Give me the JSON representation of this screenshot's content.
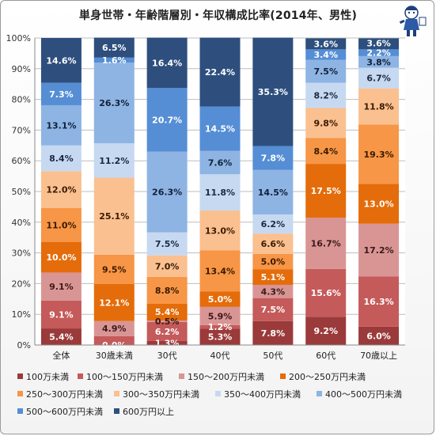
{
  "chart_data": {
    "type": "bar",
    "stacked": "percent",
    "title": "単身世帯・年齢階層別・年収構成比率(2014年、男性)",
    "categories": [
      "全体",
      "30歳未満",
      "30代",
      "40代",
      "50代",
      "60代",
      "70歳以上"
    ],
    "ylim": [
      0,
      100
    ],
    "yticks": [
      "0%",
      "10%",
      "20%",
      "30%",
      "40%",
      "50%",
      "60%",
      "70%",
      "80%",
      "90%",
      "100%"
    ],
    "grid": true,
    "legend_position": "bottom",
    "series": [
      {
        "name": "100万未満",
        "color": "#9b3a3a",
        "values": [
          5.4,
          0.0,
          1.3,
          5.3,
          7.8,
          9.2,
          6.0
        ],
        "labels": [
          "5.4%",
          "0.0%",
          "1.3%",
          "5.3%",
          "7.8%",
          "9.2%",
          "6.0%"
        ]
      },
      {
        "name": "100～150万円未満",
        "color": "#c55a5a",
        "values": [
          9.1,
          2.9,
          6.2,
          1.2,
          7.5,
          15.6,
          16.3
        ],
        "labels": [
          "9.1%",
          "",
          "6.2%",
          "1.2%",
          "7.5%",
          "15.6%",
          "16.3%"
        ]
      },
      {
        "name": "150～200万円未満",
        "color": "#d99594",
        "values": [
          9.1,
          4.9,
          0.5,
          5.9,
          4.3,
          16.7,
          17.2
        ],
        "labels": [
          "9.1%",
          "4.9%",
          "0.5%",
          "5.9%",
          "4.3%",
          "16.7%",
          "17.2%"
        ]
      },
      {
        "name": "200～250万円未満",
        "color": "#e46c0a",
        "values": [
          10.0,
          12.1,
          5.4,
          5.0,
          5.1,
          17.5,
          13.0
        ],
        "labels": [
          "10.0%",
          "12.1%",
          "5.4%",
          "5.0%",
          "5.1%",
          "17.5%",
          "13.0%"
        ]
      },
      {
        "name": "250～300万円未満",
        "color": "#f79646",
        "values": [
          11.0,
          9.5,
          8.8,
          13.4,
          5.0,
          8.4,
          19.3
        ],
        "labels": [
          "11.0%",
          "9.5%",
          "8.8%",
          "13.4%",
          "5.0%",
          "8.4%",
          "19.3%"
        ]
      },
      {
        "name": "300～350万円未満",
        "color": "#fac090",
        "values": [
          12.0,
          25.1,
          7.0,
          13.0,
          6.6,
          9.8,
          11.8
        ],
        "labels": [
          "12.0%",
          "25.1%",
          "7.0%",
          "13.0%",
          "6.6%",
          "9.8%",
          "11.8%"
        ]
      },
      {
        "name": "350～400万円未満",
        "color": "#c6d9f1",
        "values": [
          8.4,
          11.2,
          7.5,
          11.8,
          6.2,
          8.2,
          6.7
        ],
        "labels": [
          "8.4%",
          "11.2%",
          "7.5%",
          "11.8%",
          "6.2%",
          "8.2%",
          "6.7%"
        ]
      },
      {
        "name": "400～500万円未満",
        "color": "#8eb4e3",
        "values": [
          13.1,
          26.3,
          26.3,
          7.6,
          14.5,
          7.5,
          3.8
        ],
        "labels": [
          "13.1%",
          "26.3%",
          "26.3%",
          "7.6%",
          "14.5%",
          "7.5%",
          "3.8%"
        ]
      },
      {
        "name": "500～600万円未満",
        "color": "#558ed5",
        "values": [
          7.3,
          1.6,
          20.7,
          14.5,
          7.8,
          3.4,
          2.2
        ],
        "labels": [
          "7.3%",
          "1.6%",
          "20.7%",
          "14.5%",
          "7.8%",
          "3.4%",
          "2.2%"
        ]
      },
      {
        "name": "600万円以上",
        "color": "#2e4f7d",
        "values": [
          14.6,
          6.5,
          16.4,
          22.4,
          35.3,
          3.6,
          3.6
        ],
        "labels": [
          "14.6%",
          "6.5%",
          "16.4%",
          "22.4%",
          "35.3%",
          "3.6%",
          "3.6%"
        ]
      }
    ]
  }
}
